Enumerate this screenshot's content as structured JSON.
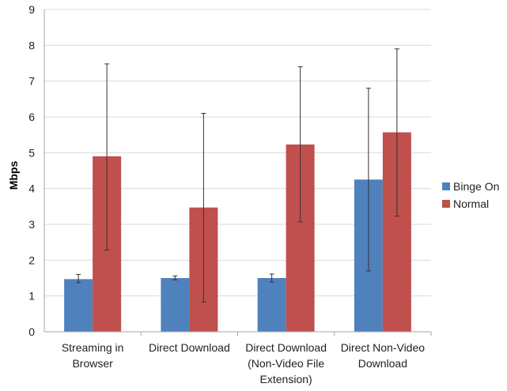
{
  "chart_data": {
    "type": "bar",
    "title": "",
    "xlabel": "",
    "ylabel": "Mbps",
    "ylim": [
      0,
      9
    ],
    "yticks": [
      0,
      1,
      2,
      3,
      4,
      5,
      6,
      7,
      8,
      9
    ],
    "grid": true,
    "legend_position": "right",
    "categories": [
      [
        "Streaming in",
        "Browser"
      ],
      [
        "Direct Download"
      ],
      [
        "Direct Download",
        "(Non-Video File",
        "Extension)"
      ],
      [
        "Direct Non-Video",
        "Download"
      ]
    ],
    "series": [
      {
        "name": "Binge On",
        "color": "#4f81bd",
        "values": [
          1.47,
          1.5,
          1.5,
          4.25
        ],
        "error_low": [
          1.37,
          1.45,
          1.39,
          1.7
        ],
        "error_high": [
          1.6,
          1.56,
          1.61,
          6.8
        ]
      },
      {
        "name": "Normal",
        "color": "#c0504d",
        "values": [
          4.9,
          3.47,
          5.23,
          5.57
        ],
        "error_low": [
          2.28,
          0.83,
          3.07,
          3.23
        ],
        "error_high": [
          7.48,
          6.1,
          7.4,
          7.9
        ]
      }
    ]
  }
}
